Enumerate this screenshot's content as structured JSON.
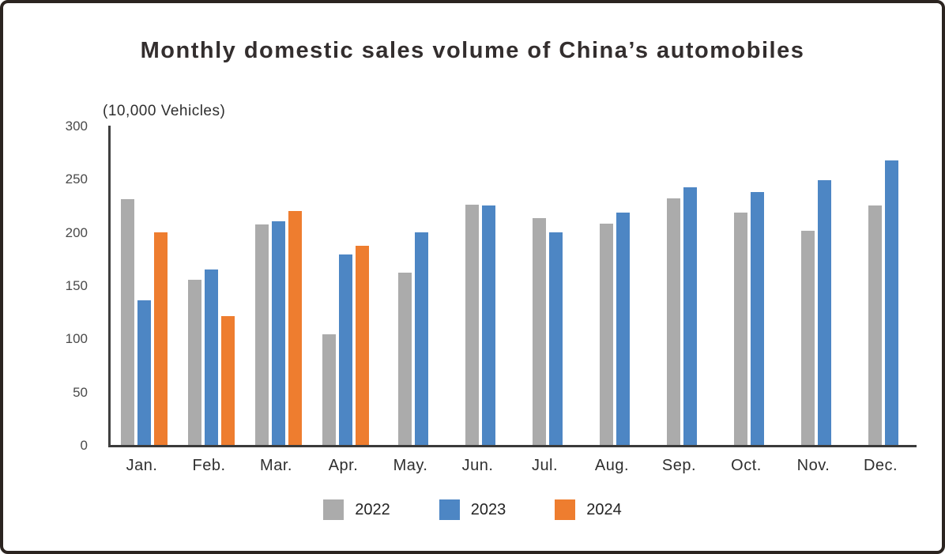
{
  "chart_data": {
    "type": "bar",
    "title": "Monthly domestic sales volume of China’s automobiles",
    "units_label": "(10,000 Vehicles)",
    "categories": [
      "Jan.",
      "Feb.",
      "Mar.",
      "Apr.",
      "May.",
      "Jun.",
      "Jul.",
      "Aug.",
      "Sep.",
      "Oct.",
      "Nov.",
      "Dec."
    ],
    "series": [
      {
        "name": "2022",
        "color": "#ABABAB",
        "values": [
          231,
          155,
          207,
          104,
          162,
          226,
          213,
          208,
          232,
          218,
          201,
          225
        ]
      },
      {
        "name": "2023",
        "color": "#4D86C4",
        "values": [
          136,
          165,
          210,
          179,
          200,
          225,
          200,
          218,
          242,
          238,
          249,
          267
        ]
      },
      {
        "name": "2024",
        "color": "#EE7D2F",
        "values": [
          200,
          121,
          220,
          187,
          null,
          null,
          null,
          null,
          null,
          null,
          null,
          null
        ]
      }
    ],
    "ylim": [
      0,
      300
    ],
    "ytick_step": 50,
    "xlabel": "",
    "ylabel": "",
    "grid": false,
    "legend_position": "bottom",
    "axis_color": "#3a3a3a",
    "tick_label_color": "#4a4a4a",
    "title_color": "#332e2e"
  },
  "frame": {
    "background": "#ffffff",
    "border_color": "#2b2420"
  }
}
